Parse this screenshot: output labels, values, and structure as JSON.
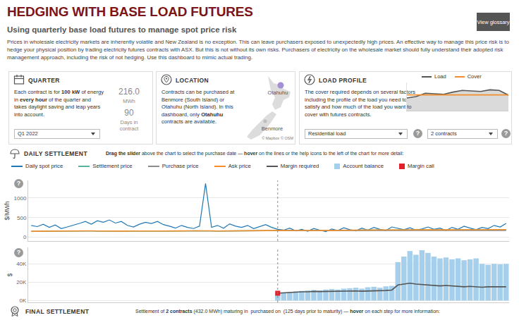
{
  "header": {
    "title": "HEDGING WITH BASE LOAD FUTURES",
    "button": "View glossary",
    "subtitle": "Using quarterly base load futures to manage spot price risk",
    "intro": "Prices in wholesale electricity markets are inherently volatile and New Zealand is no exception. This can leave purchasers exposed to unexpectedly high prices. An effective way to manage this price risk is to hedge your physical position by trading electricity futures contracts with ASX. But this is not without its own risks. Purchasers of electricity on the wholesale market should fully understand their adopted risk management approach, including the risk of not hedging. Use this dashboard to mimic actual trading.",
    "help_icon": "?"
  },
  "quarter": {
    "heading": "QUARTER",
    "text": [
      {
        "t": "Each contract is for "
      },
      {
        "t": "100 kW",
        "b": true
      },
      {
        "t": " of energy in "
      },
      {
        "t": "every hour",
        "b": true
      },
      {
        "t": " of the quarter and takes daylight saving and leap years into account."
      }
    ],
    "energy": "216.0",
    "energy_unit": "MWh",
    "days": "90",
    "days_label": "Days in contract",
    "selection": "Q1 2022"
  },
  "location": {
    "heading": "LOCATION",
    "text": [
      {
        "t": "Contracts can be purchased at Benmore (South Island) or Otahuhu (North Island). In this dashboard, only "
      },
      {
        "t": "Otahuhu",
        "b": true
      },
      {
        "t": " contracts are available."
      }
    ],
    "map_labels": [
      "Otahuhu",
      "Benmore"
    ],
    "map_credit": "© Mapbox © OSM"
  },
  "load_profile": {
    "heading": "LOAD PROFILE",
    "text": [
      {
        "t": "The cover required depends on several factors including the profile of the load you need to satisfy and how much of the load you want to cover with futures contracts."
      }
    ],
    "profile": "Residential load",
    "cover": "2 contracts"
  },
  "daily_settlement": {
    "heading": "DAILY SETTLEMENT",
    "instruction": [
      {
        "t": "Drag the slider",
        "b": true
      },
      {
        "t": " above the chart to select the purchase date — "
      },
      {
        "t": "hover",
        "b": true
      },
      {
        "t": " on the lines or the help icons to the left of the chart for more detail:"
      }
    ]
  },
  "final_settlement": {
    "heading": "FINAL SETTLEMENT",
    "text": [
      {
        "t": "Settlement of "
      },
      {
        "t": "2 contracts",
        "b": true
      },
      {
        "t": " (432.0 MWh) maturing in  purchased on  (125 days prior to maturity) — "
      },
      {
        "t": "hover",
        "b": true
      },
      {
        "t": " on each step for more information:"
      }
    ]
  },
  "chart_data": [
    {
      "type": "line",
      "ylabel": "$/MWh",
      "ylim": [
        -100,
        1450
      ],
      "yticks": [
        0,
        500,
        1000
      ],
      "grid": true,
      "tick_labels": "y",
      "categories": [
        null,
        null,
        null,
        null,
        null,
        null,
        null,
        null,
        null,
        null,
        null,
        null,
        null,
        null,
        null,
        null,
        null,
        null,
        null,
        null,
        null,
        null,
        null,
        null,
        null,
        null,
        null,
        null,
        null,
        null,
        null,
        null,
        null,
        null,
        null,
        null,
        null,
        null,
        null,
        null,
        null,
        null,
        null,
        null,
        null,
        null,
        null,
        null,
        null,
        null,
        null,
        null,
        null,
        null,
        null,
        null,
        null,
        null,
        null,
        null,
        null,
        null,
        null,
        null,
        null,
        null,
        null,
        null,
        null,
        null,
        null,
        null,
        null,
        null,
        null,
        null,
        null,
        null,
        null,
        null
      ],
      "series": [
        {
          "name": "Daily spot price",
          "color": "#1f77b4",
          "values": [
            300,
            270,
            330,
            250,
            310,
            220,
            260,
            300,
            350,
            400,
            330,
            420,
            380,
            440,
            360,
            400,
            300,
            260,
            330,
            380,
            350,
            400,
            320,
            280,
            230,
            300,
            250,
            220,
            280,
            1370,
            250,
            300,
            230,
            340,
            280,
            250,
            300,
            220,
            270,
            320,
            250,
            200,
            180,
            230,
            160,
            200,
            150,
            220,
            180,
            140,
            210,
            170,
            240,
            190,
            160,
            230,
            180,
            250,
            200,
            170,
            260,
            220,
            190,
            240,
            180,
            210,
            260,
            200,
            230,
            170,
            250,
            200,
            280,
            230,
            190,
            250,
            220,
            300,
            260,
            350
          ]
        },
        {
          "name": "Settlement price",
          "color": "#59b39a",
          "values": [
            148,
            150,
            152,
            150,
            147,
            146,
            148,
            150,
            152,
            155,
            157,
            155,
            152,
            150,
            148,
            150,
            152,
            154,
            157,
            159,
            157,
            155,
            154,
            152,
            153,
            155,
            157,
            159,
            162,
            160,
            157,
            155,
            157,
            159,
            162,
            165,
            167,
            165,
            162,
            163,
            165,
            167,
            169,
            167,
            165,
            167,
            169,
            172,
            170,
            167,
            169,
            172,
            175,
            173,
            172,
            174,
            177,
            179,
            182,
            180,
            177,
            179,
            182,
            185,
            183,
            181,
            182,
            184,
            187,
            185,
            183,
            185,
            187,
            189,
            187,
            185,
            187,
            189,
            192,
            190
          ]
        },
        {
          "name": "Purchase price",
          "color": "#8c8c8c",
          "values": [
            null,
            null,
            null,
            null,
            null,
            null,
            null,
            null,
            null,
            null,
            null,
            null,
            null,
            null,
            null,
            null,
            null,
            null,
            null,
            null,
            null,
            null,
            null,
            null,
            null,
            null,
            null,
            null,
            null,
            null,
            null,
            null,
            null,
            null,
            null,
            null,
            null,
            null,
            null,
            null,
            null,
            170,
            170,
            170,
            170,
            170,
            170,
            170,
            170,
            170,
            170,
            170,
            170,
            170,
            170,
            170,
            170,
            170,
            170,
            170,
            170,
            170,
            170,
            170,
            170,
            170,
            170,
            170,
            170,
            170,
            170,
            170,
            170,
            170,
            170,
            170,
            170,
            170,
            170,
            170
          ]
        },
        {
          "name": "Ask price",
          "color": "#f28e2b",
          "values": [
            150,
            152,
            155,
            153,
            150,
            148,
            150,
            152,
            155,
            158,
            160,
            158,
            155,
            153,
            150,
            152,
            155,
            157,
            160,
            162,
            160,
            158,
            157,
            155,
            156,
            158,
            160,
            162,
            165,
            163,
            160,
            158,
            160,
            162,
            165,
            168,
            170,
            168,
            165,
            166,
            168,
            170,
            172,
            170,
            168,
            170,
            172,
            175,
            173,
            170,
            172,
            175,
            178,
            176,
            175,
            177,
            180,
            182,
            185,
            183,
            180,
            182,
            185,
            188,
            186,
            184,
            185,
            187,
            190,
            188,
            186,
            188,
            190,
            192,
            190,
            188,
            190,
            192,
            195,
            193
          ]
        }
      ]
    },
    {
      "type": "bar",
      "ylabel": "$",
      "ylim": [
        -2000,
        58000
      ],
      "yticks": [
        {
          "value": 0,
          "label": "0K"
        },
        {
          "value": 20000,
          "label": "20K"
        },
        {
          "value": 40000,
          "label": "40K"
        }
      ],
      "grid": true,
      "tick_labels": "y",
      "categories": [
        null,
        null,
        null,
        null,
        null,
        null,
        null,
        null,
        null,
        null,
        null,
        null,
        null,
        null,
        null,
        null,
        null,
        null,
        null,
        null,
        null,
        null,
        null,
        null,
        null,
        null,
        null,
        null,
        null,
        null,
        null,
        null,
        null,
        null,
        null,
        null,
        null,
        null,
        null,
        null,
        null,
        null,
        null,
        null,
        null,
        null,
        null,
        null,
        null,
        null,
        null,
        null,
        null,
        null,
        null,
        null,
        null,
        null,
        null,
        null,
        null,
        null,
        null,
        null,
        null,
        null,
        null,
        null,
        null,
        null,
        null,
        null,
        null,
        null,
        null,
        null,
        null,
        null,
        null,
        null
      ],
      "series": [
        {
          "name": "Margin required",
          "type": "line",
          "color": "#555555",
          "values": [
            null,
            null,
            null,
            null,
            null,
            null,
            null,
            null,
            null,
            null,
            null,
            null,
            null,
            null,
            null,
            null,
            null,
            null,
            null,
            null,
            null,
            null,
            null,
            null,
            null,
            null,
            null,
            null,
            null,
            null,
            null,
            null,
            null,
            null,
            null,
            null,
            null,
            null,
            null,
            null,
            null,
            8000,
            8500,
            9000,
            9000,
            9500,
            9500,
            10000,
            9800,
            10000,
            10200,
            10000,
            10500,
            10800,
            10500,
            10200,
            10500,
            11000,
            10800,
            11000,
            11500,
            17000,
            18000,
            19000,
            18000,
            17500,
            17000,
            16500,
            16000,
            16500,
            16000,
            15500,
            15000,
            15500,
            15000,
            14500,
            15000,
            15000,
            15000,
            15000
          ]
        },
        {
          "name": "Account balance",
          "type": "bar",
          "color": "#a5cfea",
          "values": [
            null,
            null,
            null,
            null,
            null,
            null,
            null,
            null,
            null,
            null,
            null,
            null,
            null,
            null,
            null,
            null,
            null,
            null,
            null,
            null,
            null,
            null,
            null,
            null,
            null,
            null,
            null,
            null,
            null,
            null,
            null,
            null,
            null,
            null,
            null,
            null,
            null,
            null,
            null,
            null,
            null,
            8000,
            9000,
            9500,
            10000,
            10500,
            11000,
            11500,
            11000,
            12000,
            12500,
            12000,
            13000,
            13500,
            14000,
            13000,
            14500,
            15000,
            14000,
            15500,
            16000,
            42000,
            48000,
            54000,
            50000,
            55000,
            52000,
            48000,
            46000,
            47000,
            45000,
            46000,
            44000,
            45000,
            46000,
            40000,
            39000,
            40000,
            39500,
            40000
          ]
        },
        {
          "name": "Margin call",
          "type": "scatter",
          "marker": "square",
          "color": "#e0202a",
          "values": [
            null,
            null,
            null,
            null,
            null,
            null,
            null,
            null,
            null,
            null,
            null,
            null,
            null,
            null,
            null,
            null,
            null,
            null,
            null,
            null,
            null,
            null,
            null,
            null,
            null,
            null,
            null,
            null,
            null,
            null,
            null,
            null,
            null,
            null,
            null,
            null,
            null,
            null,
            null,
            null,
            null,
            8000,
            null,
            null,
            null,
            null,
            null,
            null,
            null,
            null,
            null,
            null,
            null,
            null,
            null,
            null,
            null,
            null,
            null,
            null,
            null,
            null,
            null,
            null,
            null,
            null,
            null,
            null,
            null,
            null,
            null,
            null,
            null,
            null,
            null,
            null,
            null,
            null,
            null,
            null
          ]
        }
      ]
    },
    {
      "type": "area",
      "ylim": [
        0,
        100
      ],
      "tick_labels": false,
      "grid": false,
      "categories": [
        null,
        null,
        null,
        null,
        null,
        null,
        null,
        null,
        null,
        null,
        null,
        null
      ],
      "series": [
        {
          "name": "Load",
          "type": "area",
          "color": "#555555",
          "values": [
            45,
            50,
            62,
            60,
            58,
            66,
            72,
            70,
            68,
            74,
            72,
            55
          ]
        },
        {
          "name": "Cover",
          "type": "line",
          "color": "#f28e2b",
          "values": [
            56,
            56,
            56,
            56,
            56,
            56,
            56,
            56,
            56,
            56,
            56,
            56
          ]
        }
      ]
    }
  ]
}
